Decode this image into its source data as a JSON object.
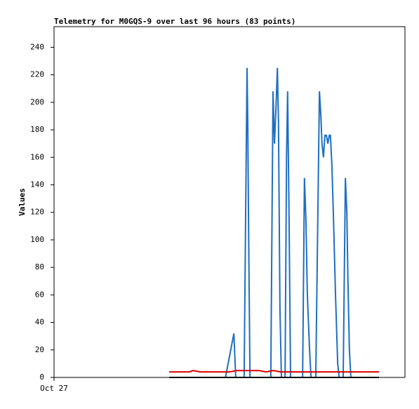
{
  "chart_data": {
    "type": "line",
    "title": "Telemetry for M0GQS-9 over last 96 hours (83 points)",
    "y_label": "Values",
    "xlim": [
      0,
      96
    ],
    "xticks": [
      {
        "value": 0,
        "label": "Oct 27"
      }
    ],
    "ylim": [
      0,
      255
    ],
    "yticks": [
      0,
      20,
      40,
      60,
      80,
      100,
      120,
      140,
      160,
      180,
      200,
      220,
      240
    ],
    "grid": false,
    "series": [
      {
        "color": "#1f6fc0",
        "x": [
          46.9,
          49.2,
          49.7,
          52.0,
          52.6,
          52.8,
          53.0,
          53.2,
          53.6,
          59.3,
          59.9,
          60.3,
          60.7,
          61.1,
          61.4,
          61.8,
          62.2,
          63.2,
          63.6,
          63.9,
          64.3,
          64.7,
          68.0,
          68.5,
          68.9,
          69.3,
          69.9,
          70.3,
          71.6,
          72.6,
          73.0,
          73.3,
          73.7,
          74.1,
          74.5,
          74.9,
          75.3,
          75.6,
          76.0,
          76.4,
          77.0,
          77.6,
          78.0,
          79.1,
          79.7,
          80.1,
          80.4,
          80.8,
          81.2
        ],
        "values": [
          0,
          32,
          0,
          0,
          170,
          225,
          185,
          115,
          0,
          0,
          208,
          170,
          195,
          225,
          185,
          50,
          0,
          0,
          160,
          208,
          115,
          0,
          0,
          145,
          115,
          60,
          20,
          0,
          0,
          208,
          190,
          170,
          160,
          176,
          176,
          170,
          176,
          176,
          155,
          120,
          60,
          10,
          0,
          0,
          145,
          120,
          70,
          20,
          0
        ]
      },
      {
        "color": "#dd0000",
        "x": [
          31.5,
          37.0,
          38.0,
          40.0,
          48.0,
          50.0,
          56.0,
          58.0,
          60.0,
          62.0,
          88.9
        ],
        "values": [
          4,
          4,
          5,
          4,
          4,
          5,
          5,
          4,
          5,
          4,
          4
        ]
      },
      {
        "color": "#000000",
        "x": [
          31.5,
          88.9
        ],
        "values": [
          0,
          0
        ]
      }
    ]
  }
}
